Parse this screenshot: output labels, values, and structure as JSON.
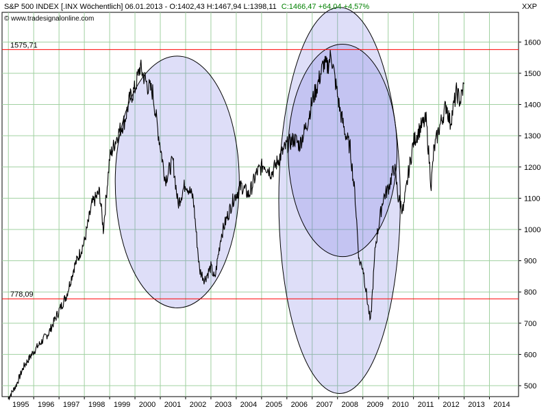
{
  "header": {
    "prefix": "S&P 500 INDEX [.INX Wöchentlich] 06.01.2013 - O:1402,43 H:1467,94 L:1398,11",
    "close_info": "C:1466,47 +64,04 +4,57%",
    "source": "© www.tradesignalonline.com",
    "symbol": "XXP"
  },
  "colors": {
    "price_line": "#000000",
    "level_line": "#ff0000",
    "level_label": "#cc0000",
    "close_info": "#008000",
    "ellipse_fill": "#6a6add",
    "ellipse_stroke": "#000000",
    "grid": "#a0d0a0"
  },
  "chart_data": {
    "type": "line",
    "title": "S&P 500 INDEX [.INX Wöchentlich]",
    "xlim": [
      1994.75,
      2015.15
    ],
    "ylim": [
      465,
      1695
    ],
    "x_ticks": [
      "1995",
      "1996",
      "1997",
      "1998",
      "1999",
      "2000",
      "2001",
      "2002",
      "2003",
      "2004",
      "2005",
      "2006",
      "2007",
      "2008",
      "2009",
      "2010",
      "2011",
      "2012",
      "2013",
      "2014"
    ],
    "y_ticks": [
      500,
      600,
      700,
      800,
      900,
      1000,
      1100,
      1200,
      1300,
      1400,
      1500,
      1600
    ],
    "grid": true,
    "horizontal_levels": [
      {
        "value": 1575.71,
        "label": "1575,71"
      },
      {
        "value": 778.09,
        "label": "778,09"
      }
    ],
    "ellipses": [
      {
        "center": [
          2001.67,
          1152
        ],
        "x_radius": 2.45,
        "y_radius": 403
      },
      {
        "center": [
          2008.08,
          1093
        ],
        "x_radius": 2.4,
        "y_radius": 618
      },
      {
        "center": [
          2008.2,
          1253
        ],
        "x_radius": 2.15,
        "y_radius": 340
      }
    ],
    "series": [
      {
        "x": [
          1995.0,
          1995.3,
          1995.6,
          1996.0,
          1996.3,
          1996.6,
          1997.0,
          1997.3,
          1997.6,
          1998.0,
          1998.3,
          1998.6,
          1998.75,
          1999.0,
          1999.3,
          1999.6,
          1999.8,
          2000.0,
          2000.2,
          2000.5,
          2000.7,
          2000.9,
          2001.2,
          2001.5,
          2001.7,
          2002.0,
          2002.3,
          2002.55,
          2002.75,
          2003.0,
          2003.15,
          2003.4,
          2003.6,
          2003.9,
          2004.2,
          2004.5,
          2004.8,
          2005.1,
          2005.4,
          2005.7,
          2006.0,
          2006.3,
          2006.5,
          2006.8,
          2007.0,
          2007.2,
          2007.45,
          2007.6,
          2007.75,
          2007.9,
          2008.1,
          2008.3,
          2008.5,
          2008.7,
          2008.85,
          2009.0,
          2009.2,
          2009.3,
          2009.5,
          2009.8,
          2010.0,
          2010.25,
          2010.4,
          2010.6,
          2010.8,
          2011.0,
          2011.3,
          2011.5,
          2011.7,
          2011.8,
          2012.0,
          2012.3,
          2012.45,
          2012.7,
          2012.85,
          2013.0
        ],
        "y": [
          460,
          500,
          560,
          610,
          640,
          670,
          740,
          790,
          880,
          960,
          1080,
          1120,
          1000,
          1230,
          1300,
          1350,
          1420,
          1450,
          1520,
          1460,
          1440,
          1320,
          1160,
          1220,
          1080,
          1150,
          1100,
          870,
          840,
          880,
          840,
          980,
          1030,
          1100,
          1140,
          1110,
          1180,
          1210,
          1180,
          1230,
          1270,
          1290,
          1270,
          1340,
          1410,
          1460,
          1530,
          1520,
          1560,
          1480,
          1380,
          1310,
          1260,
          1100,
          900,
          880,
          760,
          700,
          950,
          1100,
          1130,
          1200,
          1100,
          1060,
          1180,
          1280,
          1330,
          1350,
          1140,
          1250,
          1320,
          1400,
          1340,
          1440,
          1410,
          1466
        ]
      }
    ]
  }
}
